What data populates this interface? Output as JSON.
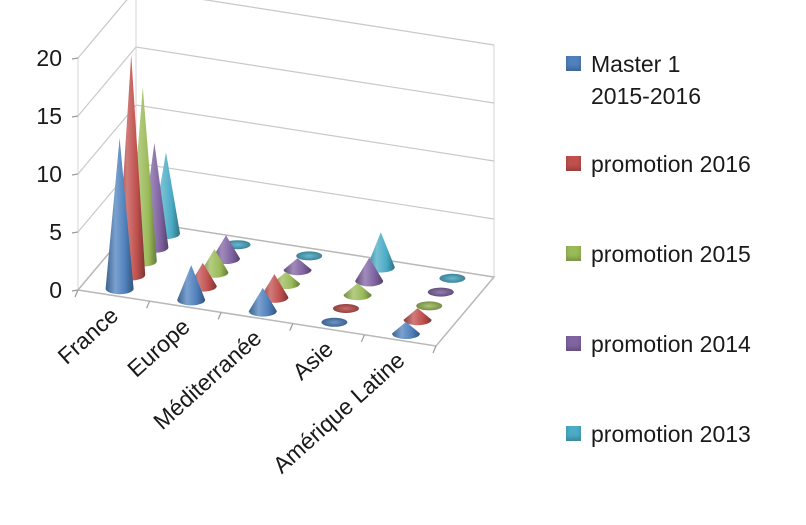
{
  "chart_data": {
    "type": "bar",
    "style": "3d-cone",
    "categories": [
      "France",
      "Europe",
      "Méditerranée",
      "Asie",
      "Amérique Latine"
    ],
    "series": [
      {
        "name": "Master 1\n2015-2016",
        "color": "#4f81bd",
        "values": [
          13,
          3,
          2,
          0,
          1
        ]
      },
      {
        "name": "promotion 2016",
        "color": "#c0504d",
        "values": [
          19,
          2,
          2,
          0,
          1
        ]
      },
      {
        "name": "promotion 2015",
        "color": "#9bbb59",
        "values": [
          15,
          2,
          1,
          1,
          0
        ]
      },
      {
        "name": "promotion 2014",
        "color": "#8064a2",
        "values": [
          9,
          2,
          1,
          2,
          0
        ]
      },
      {
        "name": "promotion 2013",
        "color": "#4bacc6",
        "values": [
          7,
          0,
          0,
          3,
          0
        ]
      }
    ],
    "yticks": [
      0,
      5,
      10,
      15,
      20
    ],
    "ylim": [
      0,
      20
    ],
    "grid": true,
    "legend_position": "right"
  }
}
